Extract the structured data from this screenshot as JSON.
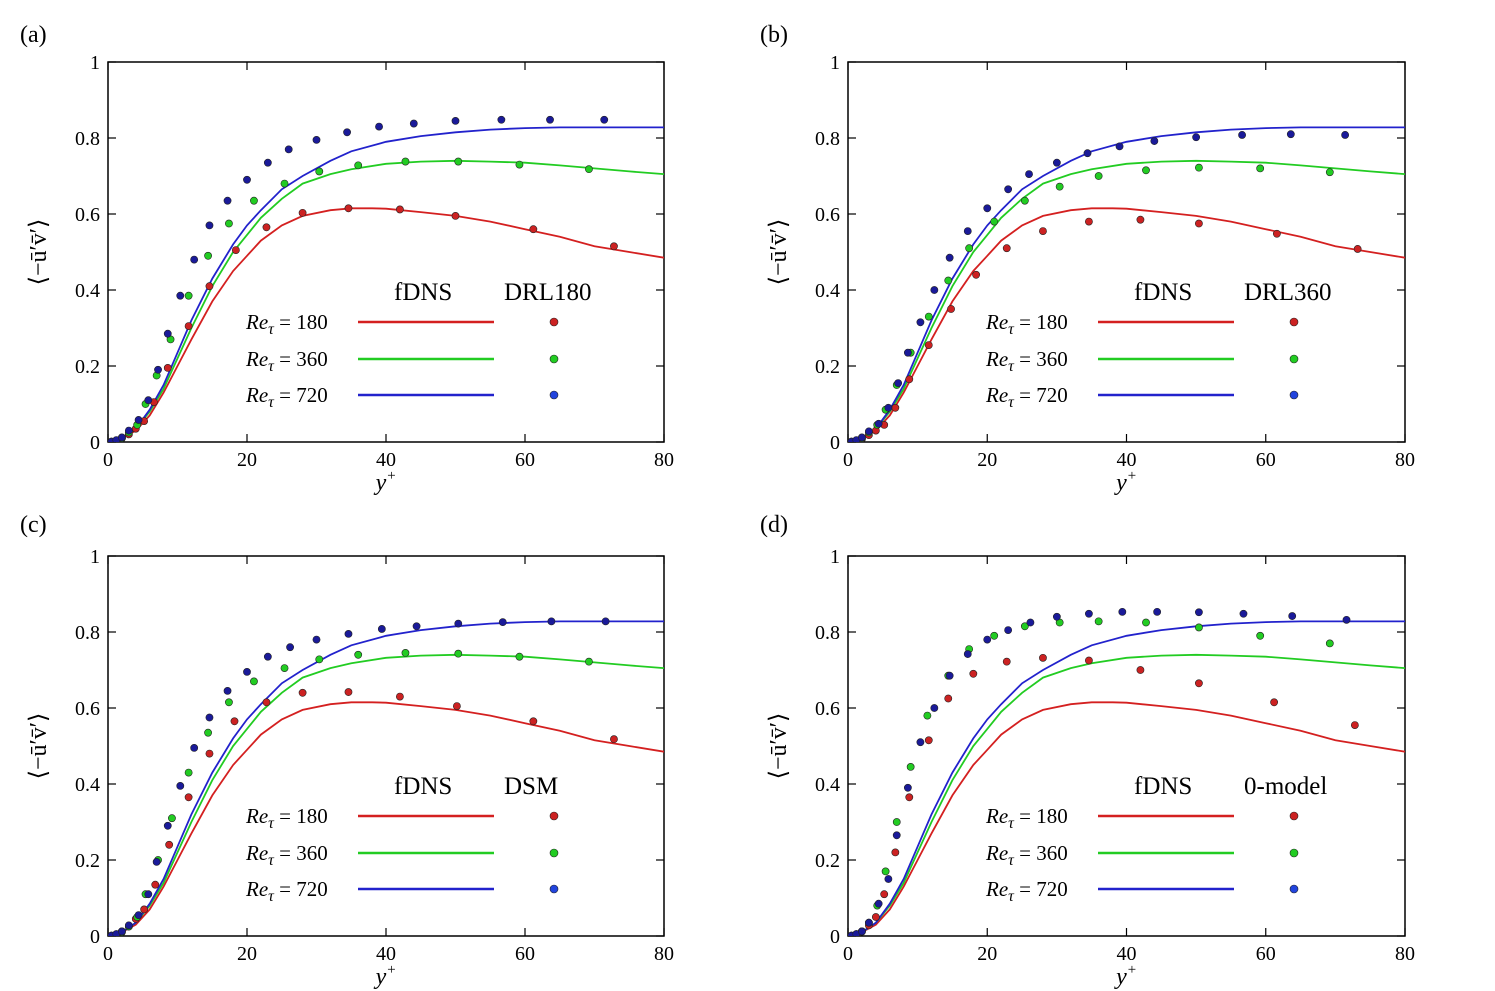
{
  "chart_data": [
    {
      "type": "line",
      "panel_label": "(a)",
      "xlabel": "y+",
      "ylabel": "⟨−ū′v̄′⟩",
      "xlim": [
        0,
        80
      ],
      "ylim": [
        0,
        1
      ],
      "xticks": [
        "0",
        "20",
        "40",
        "60",
        "80"
      ],
      "yticks": [
        "0",
        "0.2",
        "0.4",
        "0.6",
        "0.8",
        "1"
      ],
      "legend": {
        "line_header": "fDNS",
        "marker_header": "DRL180",
        "entries": [
          "Reτ = 180",
          "Reτ = 360",
          "Reτ = 720"
        ]
      },
      "series": [
        {
          "name": "fDNS Reτ = 180",
          "kind": "line",
          "color": "#d42020",
          "line_ref": "line180"
        },
        {
          "name": "fDNS Reτ = 360",
          "kind": "line",
          "color": "#22cc22",
          "line_ref": "line360"
        },
        {
          "name": "fDNS Reτ = 720",
          "kind": "line",
          "color": "#2222cc",
          "line_ref": "line720"
        },
        {
          "name": "DRL180 Reτ = 180",
          "kind": "scatter",
          "color": "#cc2222",
          "x": [
            0.5,
            1.2,
            2,
            3,
            4,
            5.2,
            6.6,
            8.6,
            11.6,
            14.6,
            18.4,
            22.8,
            28,
            34.6,
            42,
            50,
            61.2,
            72.8
          ],
          "y": [
            0.001,
            0.004,
            0.01,
            0.02,
            0.035,
            0.055,
            0.105,
            0.195,
            0.305,
            0.41,
            0.505,
            0.565,
            0.603,
            0.615,
            0.612,
            0.595,
            0.56,
            0.515
          ]
        },
        {
          "name": "DRL180 Reτ = 360",
          "kind": "scatter",
          "color": "#22cc22",
          "x": [
            0.5,
            1.2,
            2,
            3,
            4.2,
            5.4,
            7,
            9,
            11.6,
            14.4,
            17.4,
            21,
            25.4,
            30.4,
            36,
            42.8,
            50.4,
            59.2,
            69.2
          ],
          "y": [
            0.001,
            0.004,
            0.01,
            0.025,
            0.045,
            0.1,
            0.175,
            0.27,
            0.385,
            0.49,
            0.575,
            0.635,
            0.68,
            0.712,
            0.728,
            0.738,
            0.738,
            0.73,
            0.718
          ]
        },
        {
          "name": "DRL180 Reτ = 720",
          "kind": "scatter",
          "color": "#1a1a99",
          "x": [
            0.5,
            1.2,
            2,
            3,
            4.4,
            5.8,
            7.2,
            8.6,
            10.4,
            12.4,
            14.6,
            17.2,
            20,
            23,
            26,
            30,
            34.4,
            39,
            44,
            50,
            56.6,
            63.6,
            71.4
          ],
          "y": [
            0.001,
            0.005,
            0.012,
            0.03,
            0.058,
            0.11,
            0.19,
            0.285,
            0.385,
            0.48,
            0.57,
            0.635,
            0.69,
            0.735,
            0.77,
            0.795,
            0.815,
            0.83,
            0.838,
            0.845,
            0.848,
            0.848,
            0.848
          ]
        }
      ]
    },
    {
      "type": "line",
      "panel_label": "(b)",
      "xlabel": "y+",
      "ylabel": "⟨−ū′v̄′⟩",
      "xlim": [
        0,
        80
      ],
      "ylim": [
        0,
        1
      ],
      "xticks": [
        "0",
        "20",
        "40",
        "60",
        "80"
      ],
      "yticks": [
        "0",
        "0.2",
        "0.4",
        "0.6",
        "0.8",
        "1"
      ],
      "legend": {
        "line_header": "fDNS",
        "marker_header": "DRL360",
        "entries": [
          "Reτ = 180",
          "Reτ = 360",
          "Reτ = 720"
        ]
      },
      "series": [
        {
          "name": "fDNS Reτ = 180",
          "kind": "line",
          "color": "#d42020",
          "line_ref": "line180"
        },
        {
          "name": "fDNS Reτ = 360",
          "kind": "line",
          "color": "#22cc22",
          "line_ref": "line360"
        },
        {
          "name": "fDNS Reτ = 720",
          "kind": "line",
          "color": "#2222cc",
          "line_ref": "line720"
        },
        {
          "name": "DRL360 Reτ = 180",
          "kind": "scatter",
          "color": "#cc2222",
          "x": [
            0.5,
            1.2,
            2,
            3,
            4,
            5.2,
            6.8,
            8.8,
            11.6,
            14.8,
            18.4,
            22.8,
            28,
            34.6,
            42,
            50.4,
            61.6,
            73.2
          ],
          "y": [
            0.001,
            0.003,
            0.008,
            0.018,
            0.03,
            0.045,
            0.09,
            0.165,
            0.255,
            0.35,
            0.44,
            0.51,
            0.555,
            0.58,
            0.585,
            0.575,
            0.548,
            0.508
          ]
        },
        {
          "name": "DRL360 Reτ = 360",
          "kind": "scatter",
          "color": "#22cc22",
          "x": [
            0.5,
            1.2,
            2,
            3,
            4.2,
            5.4,
            7,
            9,
            11.6,
            14.4,
            17.4,
            21,
            25.4,
            30.4,
            36,
            42.8,
            50.4,
            59.2,
            69.2
          ],
          "y": [
            0.001,
            0.004,
            0.01,
            0.025,
            0.045,
            0.085,
            0.15,
            0.235,
            0.33,
            0.425,
            0.51,
            0.58,
            0.635,
            0.672,
            0.7,
            0.715,
            0.722,
            0.72,
            0.71
          ]
        },
        {
          "name": "DRL360 Reτ = 720",
          "kind": "scatter",
          "color": "#1a1a99",
          "x": [
            0.5,
            1.2,
            2,
            3,
            4.4,
            5.8,
            7.2,
            8.6,
            10.4,
            12.4,
            14.6,
            17.2,
            20,
            23,
            26,
            30,
            34.4,
            39,
            44,
            50,
            56.6,
            63.6,
            71.4
          ],
          "y": [
            0.001,
            0.005,
            0.012,
            0.028,
            0.048,
            0.09,
            0.155,
            0.235,
            0.315,
            0.4,
            0.485,
            0.555,
            0.615,
            0.665,
            0.705,
            0.735,
            0.76,
            0.778,
            0.792,
            0.802,
            0.808,
            0.81,
            0.808
          ]
        }
      ]
    },
    {
      "type": "line",
      "panel_label": "(c)",
      "xlabel": "y+",
      "ylabel": "⟨−ū′v̄′⟩",
      "xlim": [
        0,
        80
      ],
      "ylim": [
        0,
        1
      ],
      "xticks": [
        "0",
        "20",
        "40",
        "60",
        "80"
      ],
      "yticks": [
        "0",
        "0.2",
        "0.4",
        "0.6",
        "0.8",
        "1"
      ],
      "legend": {
        "line_header": "fDNS",
        "marker_header": "DSM",
        "entries": [
          "Reτ = 180",
          "Reτ = 360",
          "Reτ = 720"
        ]
      },
      "series": [
        {
          "name": "fDNS Reτ = 180",
          "kind": "line",
          "color": "#d42020",
          "line_ref": "line180"
        },
        {
          "name": "fDNS Reτ = 360",
          "kind": "line",
          "color": "#22cc22",
          "line_ref": "line360"
        },
        {
          "name": "fDNS Reτ = 720",
          "kind": "line",
          "color": "#2222cc",
          "line_ref": "line720"
        },
        {
          "name": "DSM Reτ = 180",
          "kind": "scatter",
          "color": "#cc2222",
          "x": [
            0.5,
            1.2,
            2,
            3,
            4,
            5.2,
            6.8,
            8.8,
            11.6,
            14.6,
            18.2,
            22.8,
            28,
            34.6,
            42,
            50.2,
            61.2,
            72.8
          ],
          "y": [
            0.001,
            0.005,
            0.012,
            0.025,
            0.045,
            0.07,
            0.135,
            0.24,
            0.365,
            0.48,
            0.565,
            0.615,
            0.64,
            0.642,
            0.63,
            0.605,
            0.565,
            0.518
          ]
        },
        {
          "name": "DSM Reτ = 360",
          "kind": "scatter",
          "color": "#22cc22",
          "x": [
            0.5,
            1.2,
            2,
            3,
            4.2,
            5.4,
            7.2,
            9.2,
            11.6,
            14.4,
            17.4,
            21,
            25.4,
            30.4,
            36,
            42.8,
            50.4,
            59.2,
            69.2
          ],
          "y": [
            0.001,
            0.004,
            0.01,
            0.025,
            0.05,
            0.11,
            0.2,
            0.31,
            0.43,
            0.535,
            0.615,
            0.67,
            0.705,
            0.728,
            0.74,
            0.745,
            0.743,
            0.735,
            0.722
          ]
        },
        {
          "name": "DSM Reτ = 720",
          "kind": "scatter",
          "color": "#1a1a99",
          "x": [
            0.5,
            1.2,
            2,
            3,
            4.4,
            5.8,
            7,
            8.6,
            10.4,
            12.4,
            14.6,
            17.2,
            20,
            23,
            26.2,
            30,
            34.6,
            39.4,
            44.4,
            50.4,
            56.8,
            63.8,
            71.6
          ],
          "y": [
            0.001,
            0.005,
            0.012,
            0.028,
            0.055,
            0.11,
            0.195,
            0.29,
            0.395,
            0.495,
            0.575,
            0.645,
            0.695,
            0.735,
            0.76,
            0.78,
            0.795,
            0.808,
            0.815,
            0.822,
            0.826,
            0.828,
            0.828
          ]
        }
      ]
    },
    {
      "type": "line",
      "panel_label": "(d)",
      "xlabel": "y+",
      "ylabel": "⟨−ū′v̄′⟩",
      "xlim": [
        0,
        80
      ],
      "ylim": [
        0,
        1
      ],
      "xticks": [
        "0",
        "20",
        "40",
        "60",
        "80"
      ],
      "yticks": [
        "0",
        "0.2",
        "0.4",
        "0.6",
        "0.8",
        "1"
      ],
      "legend": {
        "line_header": "fDNS",
        "marker_header": "0-model",
        "entries": [
          "Reτ = 180",
          "Reτ = 360",
          "Reτ = 720"
        ]
      },
      "series": [
        {
          "name": "fDNS Reτ = 180",
          "kind": "line",
          "color": "#d42020",
          "line_ref": "line180"
        },
        {
          "name": "fDNS Reτ = 360",
          "kind": "line",
          "color": "#22cc22",
          "line_ref": "line360"
        },
        {
          "name": "fDNS Reτ = 720",
          "kind": "line",
          "color": "#2222cc",
          "line_ref": "line720"
        },
        {
          "name": "0-model Reτ = 180",
          "kind": "scatter",
          "color": "#cc2222",
          "x": [
            0.5,
            1.2,
            2,
            3,
            4,
            5.2,
            6.8,
            8.8,
            11.6,
            14.4,
            18,
            22.8,
            28,
            34.6,
            42,
            50.4,
            61.2,
            72.8
          ],
          "y": [
            0.001,
            0.005,
            0.012,
            0.028,
            0.05,
            0.11,
            0.22,
            0.365,
            0.515,
            0.625,
            0.69,
            0.722,
            0.732,
            0.725,
            0.7,
            0.665,
            0.615,
            0.555
          ]
        },
        {
          "name": "0-model Reτ = 360",
          "kind": "scatter",
          "color": "#22cc22",
          "x": [
            0.5,
            1.2,
            2,
            3,
            4.2,
            5.4,
            7,
            9,
            11.4,
            14.4,
            17.4,
            21,
            25.4,
            30.4,
            36,
            42.8,
            50.4,
            59.2,
            69.2
          ],
          "y": [
            0.001,
            0.005,
            0.012,
            0.035,
            0.08,
            0.17,
            0.3,
            0.445,
            0.58,
            0.685,
            0.755,
            0.79,
            0.815,
            0.825,
            0.828,
            0.825,
            0.812,
            0.79,
            0.77
          ]
        },
        {
          "name": "0-model Reτ = 720",
          "kind": "scatter",
          "color": "#1a1a99",
          "x": [
            0.5,
            1.2,
            2,
            3,
            4.4,
            5.8,
            7,
            8.6,
            10.4,
            12.4,
            14.6,
            17.2,
            20,
            23,
            26.2,
            30,
            34.6,
            39.4,
            44.4,
            50.4,
            56.8,
            63.8,
            71.6
          ],
          "y": [
            0.001,
            0.005,
            0.012,
            0.035,
            0.085,
            0.15,
            0.265,
            0.39,
            0.51,
            0.6,
            0.685,
            0.742,
            0.78,
            0.805,
            0.825,
            0.84,
            0.848,
            0.853,
            0.853,
            0.852,
            0.848,
            0.842,
            0.832
          ]
        }
      ]
    }
  ],
  "reference_lines": {
    "line180": {
      "x": [
        0,
        2,
        4,
        6,
        8,
        10,
        12,
        15,
        18,
        20,
        22,
        25,
        28,
        32,
        35,
        38,
        40,
        45,
        50,
        55,
        60,
        65,
        70,
        75,
        80
      ],
      "y": [
        0,
        0.01,
        0.03,
        0.07,
        0.13,
        0.2,
        0.27,
        0.37,
        0.45,
        0.49,
        0.53,
        0.57,
        0.595,
        0.61,
        0.615,
        0.615,
        0.614,
        0.605,
        0.595,
        0.58,
        0.56,
        0.54,
        0.515,
        0.5,
        0.485
      ]
    },
    "line360": {
      "x": [
        0,
        2,
        4,
        6,
        8,
        10,
        12,
        15,
        18,
        20,
        22,
        25,
        28,
        32,
        35,
        40,
        45,
        50,
        55,
        60,
        65,
        70,
        75,
        80
      ],
      "y": [
        0,
        0.01,
        0.035,
        0.08,
        0.14,
        0.22,
        0.3,
        0.41,
        0.5,
        0.545,
        0.59,
        0.64,
        0.68,
        0.705,
        0.718,
        0.732,
        0.738,
        0.74,
        0.738,
        0.735,
        0.728,
        0.72,
        0.712,
        0.705
      ]
    },
    "line720": {
      "x": [
        0,
        2,
        4,
        6,
        8,
        10,
        12,
        15,
        18,
        20,
        22,
        25,
        28,
        32,
        35,
        40,
        45,
        50,
        55,
        60,
        65,
        70,
        75,
        80
      ],
      "y": [
        0,
        0.01,
        0.035,
        0.085,
        0.15,
        0.235,
        0.32,
        0.43,
        0.52,
        0.57,
        0.61,
        0.665,
        0.7,
        0.74,
        0.765,
        0.79,
        0.805,
        0.815,
        0.822,
        0.826,
        0.828,
        0.828,
        0.828,
        0.828
      ]
    }
  }
}
